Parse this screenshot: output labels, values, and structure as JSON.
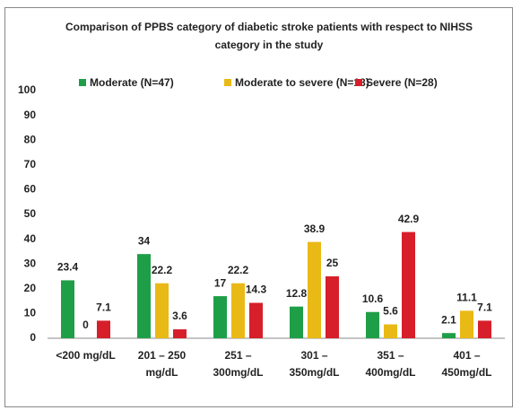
{
  "chart_data": {
    "type": "bar",
    "title": "Comparison of PPBS category of diabetic stroke patients with respect to NIHSS category in the study",
    "categories": [
      "<200 mg/dL",
      "201 – 250 mg/dL",
      "251 – 300mg/dL",
      "301 – 350mg/dL",
      "351 – 400mg/dL",
      "401 – 450mg/dL"
    ],
    "series": [
      {
        "name": "Moderate (N=47)",
        "color": "#1f9e48",
        "values": [
          23.4,
          34,
          17,
          12.8,
          10.6,
          2.1
        ]
      },
      {
        "name": "Moderate to severe (N=18)",
        "color": "#e9b916",
        "values": [
          0,
          22.2,
          22.2,
          38.9,
          5.6,
          11.1
        ]
      },
      {
        "name": "Severe (N=28)",
        "color": "#d61f2a",
        "values": [
          7.1,
          3.6,
          14.3,
          25,
          42.9,
          7.1
        ]
      }
    ],
    "ylim": [
      0,
      100
    ],
    "yticks": [
      0,
      10,
      20,
      30,
      40,
      50,
      60,
      70,
      80,
      90,
      100
    ],
    "grid": false,
    "legend": "top"
  }
}
